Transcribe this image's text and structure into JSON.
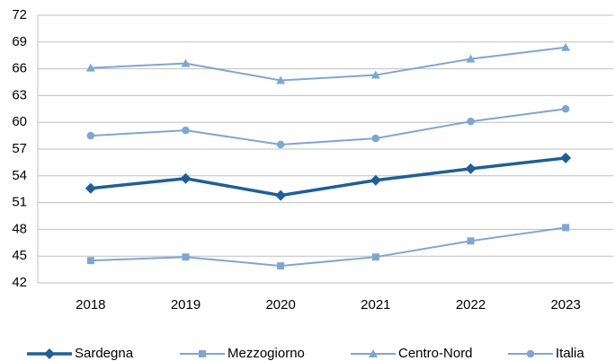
{
  "chart_data": {
    "type": "line",
    "categories": [
      "2018",
      "2019",
      "2020",
      "2021",
      "2022",
      "2023"
    ],
    "series": [
      {
        "name": "Sardegna",
        "color": "#1f5f96",
        "marker": "diamond",
        "values": [
          52.6,
          53.7,
          51.8,
          53.5,
          54.8,
          56.0
        ]
      },
      {
        "name": "Mezzogiorno",
        "color": "#7fa6d0",
        "marker": "square",
        "values": [
          44.5,
          44.9,
          43.9,
          44.9,
          46.7,
          48.2
        ]
      },
      {
        "name": "Centro-Nord",
        "color": "#7fa6d0",
        "marker": "triangle",
        "values": [
          66.1,
          66.6,
          64.7,
          65.3,
          67.1,
          68.4
        ]
      },
      {
        "name": "Italia",
        "color": "#7fa6d0",
        "marker": "circle",
        "values": [
          58.5,
          59.1,
          57.5,
          58.2,
          60.1,
          61.5
        ]
      }
    ],
    "ylim": [
      42,
      72
    ],
    "yticks": [
      42,
      45,
      48,
      51,
      54,
      57,
      60,
      63,
      66,
      69,
      72
    ],
    "grid": true,
    "legend": "bottom"
  }
}
